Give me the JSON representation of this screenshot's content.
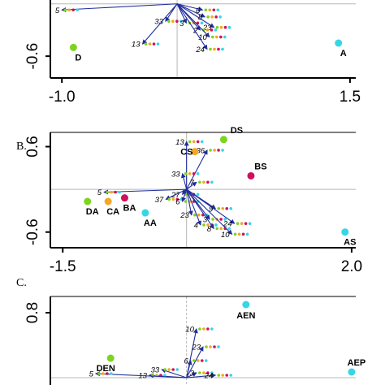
{
  "colors": {
    "green": "#7ed321",
    "orange": "#f5a623",
    "magenta": "#d0105c",
    "cyan": "#35d6e8",
    "arrow": "#1f2d9c",
    "axis": "#000000",
    "crosshair": "#b8b8b8"
  },
  "chart_data": [
    {
      "panel": "A",
      "type": "scatter",
      "panel_label": "",
      "xlim": [
        -1.1,
        1.55
      ],
      "ylim": [
        -0.85,
        0.1
      ],
      "xticks": [
        {
          "value": -1.0,
          "label": "-1.0"
        },
        {
          "value": 1.5,
          "label": "1.5"
        }
      ],
      "yticks": [
        {
          "value": -0.6,
          "label": "-0.6"
        }
      ],
      "origin": [
        0.0,
        0.0
      ],
      "sites": [
        {
          "name": "D",
          "x": -0.9,
          "y": -0.5,
          "color": "green"
        },
        {
          "name": "A",
          "x": 1.4,
          "y": -0.45,
          "color": "cyan"
        }
      ],
      "vectors": [
        {
          "name": "5",
          "x": -1.0,
          "y": -0.07
        },
        {
          "name": "6",
          "x": 0.22,
          "y": -0.07
        },
        {
          "name": "8",
          "x": 0.24,
          "y": -0.15
        },
        {
          "name": "33",
          "x": -0.1,
          "y": -0.2
        },
        {
          "name": "3",
          "x": 0.08,
          "y": -0.22
        },
        {
          "name": "23",
          "x": 0.32,
          "y": -0.27
        },
        {
          "name": "2",
          "x": 0.2,
          "y": -0.3
        },
        {
          "name": "10",
          "x": 0.28,
          "y": -0.38
        },
        {
          "name": "13",
          "x": -0.3,
          "y": -0.46
        },
        {
          "name": "24",
          "x": 0.26,
          "y": -0.52
        }
      ]
    },
    {
      "panel": "B",
      "type": "scatter",
      "panel_label": "B.",
      "xlim": [
        -1.65,
        2.05
      ],
      "ylim": [
        -0.82,
        0.8
      ],
      "xticks": [
        {
          "value": -1.5,
          "label": "-1.5"
        },
        {
          "value": 2.0,
          "label": "2.0"
        }
      ],
      "yticks": [
        {
          "value": 0.6,
          "label": "0.6"
        },
        {
          "value": -0.6,
          "label": "-0.6"
        }
      ],
      "origin": [
        0.0,
        0.0
      ],
      "sites": [
        {
          "name": "DS",
          "x": 0.45,
          "y": 0.7,
          "color": "green"
        },
        {
          "name": "CS",
          "x": 0.1,
          "y": 0.53,
          "color": "orange"
        },
        {
          "name": "BS",
          "x": 0.78,
          "y": 0.19,
          "color": "magenta"
        },
        {
          "name": "DA",
          "x": -1.2,
          "y": -0.17,
          "color": "green"
        },
        {
          "name": "CA",
          "x": -0.95,
          "y": -0.17,
          "color": "orange"
        },
        {
          "name": "BA",
          "x": -0.75,
          "y": -0.12,
          "color": "magenta"
        },
        {
          "name": "AA",
          "x": -0.5,
          "y": -0.33,
          "color": "cyan"
        },
        {
          "name": "AS",
          "x": 1.92,
          "y": -0.6,
          "color": "cyan"
        }
      ],
      "vectors": [
        {
          "name": "13",
          "x": 0.0,
          "y": 0.67
        },
        {
          "name": "36",
          "x": 0.25,
          "y": 0.55
        },
        {
          "name": "33",
          "x": -0.05,
          "y": 0.22
        },
        {
          "name": "7",
          "x": 0.12,
          "y": 0.1
        },
        {
          "name": "5",
          "x": -1.0,
          "y": -0.04
        },
        {
          "name": "27",
          "x": -0.05,
          "y": -0.07
        },
        {
          "name": "37",
          "x": -0.25,
          "y": -0.14
        },
        {
          "name": "6",
          "x": -0.05,
          "y": -0.17
        },
        {
          "name": "9",
          "x": 0.35,
          "y": -0.27
        },
        {
          "name": "23",
          "x": 0.06,
          "y": -0.36
        },
        {
          "name": "3",
          "x": 0.28,
          "y": -0.42
        },
        {
          "name": "24",
          "x": 0.58,
          "y": -0.48
        },
        {
          "name": "4",
          "x": 0.17,
          "y": -0.5
        },
        {
          "name": "8",
          "x": 0.33,
          "y": -0.55
        },
        {
          "name": "10",
          "x": 0.55,
          "y": -0.63
        }
      ]
    },
    {
      "panel": "C",
      "type": "scatter",
      "panel_label": "C.",
      "xlim": [
        -1.65,
        2.05
      ],
      "ylim": [
        -0.25,
        1.0
      ],
      "xticks": [],
      "yticks": [
        {
          "value": 0.8,
          "label": "0.8"
        }
      ],
      "origin": [
        0.0,
        0.0
      ],
      "sites": [
        {
          "name": "AEN",
          "x": 0.72,
          "y": 0.9,
          "color": "cyan"
        },
        {
          "name": "DEN",
          "x": -0.92,
          "y": 0.24,
          "color": "green"
        },
        {
          "name": "AEP",
          "x": 2.0,
          "y": 0.07,
          "color": "cyan"
        }
      ],
      "vectors": [
        {
          "name": "10",
          "x": 0.12,
          "y": 0.6
        },
        {
          "name": "23",
          "x": 0.2,
          "y": 0.38
        },
        {
          "name": "6",
          "x": 0.05,
          "y": 0.21
        },
        {
          "name": "33",
          "x": -0.3,
          "y": 0.1
        },
        {
          "name": "3",
          "x": 0.12,
          "y": 0.06
        },
        {
          "name": "13",
          "x": -0.45,
          "y": 0.03
        },
        {
          "name": "24",
          "x": 0.35,
          "y": 0.03
        },
        {
          "name": "5",
          "x": -1.1,
          "y": 0.05
        }
      ]
    }
  ]
}
